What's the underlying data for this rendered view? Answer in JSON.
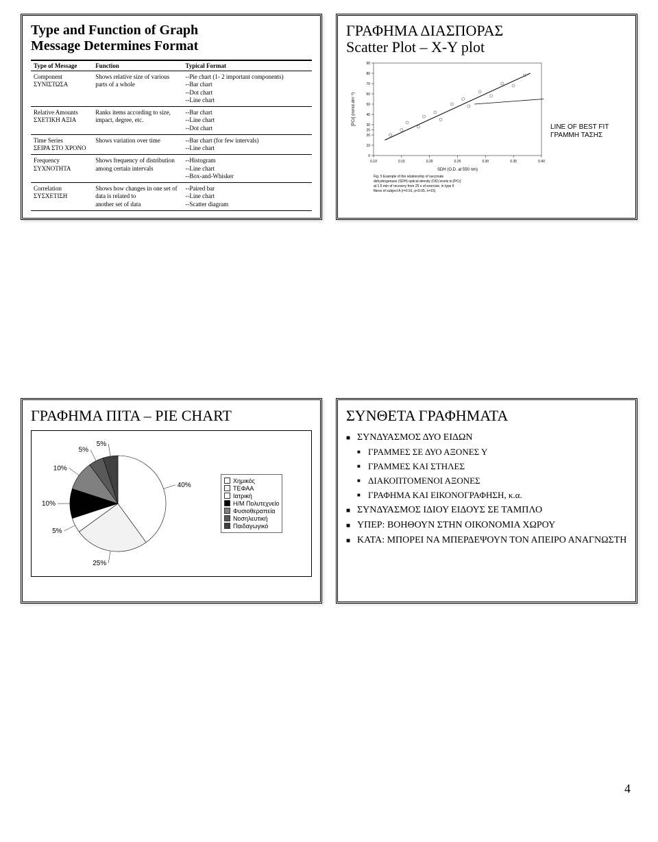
{
  "page_number": "4",
  "slide1": {
    "title_line1": "Type and Function of Graph",
    "title_line2": "Message Determines Format",
    "headers": [
      "Type of Message",
      "Function",
      "Typical Format"
    ],
    "rows": [
      {
        "type": "Component\nΣΥΝΙΣΤΩΣΑ",
        "func": "Shows relative size of various parts of a whole",
        "fmt": "--Pie chart (1- 2 important components)\n--Bar chart\n--Dot chart\n--Line chart"
      },
      {
        "type": "Relative Amounts\nΣΧΕΤΙΚΗ ΑΞΙΑ",
        "func": "Ranks items according to size, impact, degree, etc.",
        "fmt": "--Bar chart\n--Line chart\n--Dot chart"
      },
      {
        "type": "Time Series\nΣΕΙΡΑ ΣΤΟ ΧΡΟΝΟ",
        "func": "Shows variation over time",
        "fmt": "--Bar chart (for few intervals)\n--Line chart"
      },
      {
        "type": "Frequency\nΣΥΧΝΟΤΗΤΑ",
        "func": "Shows frequency of distribution among certain intervals",
        "fmt": "--Histogram\n--Line chart\n--Box-and-Whisker"
      },
      {
        "type": "Correlation\nΣΥΣΧΕΤΙΣΗ",
        "func": "Shows how changes in one set of data is related to\nanother set of data",
        "fmt": "--Paired bar\n--Line chart\n--Scatter diagram"
      }
    ]
  },
  "slide2": {
    "title_gr": "ΓΡΑΦΗΜΑ ΔΙΑΣΠΟΡΑΣ",
    "title_en": "Scatter Plot – X-Y plot",
    "label_line1": "LINE OF BEST FIT",
    "label_line2": "ΓΡΑΜΜΗ ΤΑΣΗΣ",
    "scatter": {
      "type": "scatter",
      "xlim": [
        0.1,
        0.4
      ],
      "ylim": [
        0,
        90
      ],
      "xticks": [
        0.1,
        0.15,
        0.2,
        0.25,
        0.3,
        0.35,
        0.4
      ],
      "yticks": [
        0,
        10,
        20,
        25,
        30,
        40,
        50,
        60,
        70,
        80,
        90
      ],
      "xlabel": "SDH (O.D. at 550 nm)",
      "ylabel": "[PCr] (mmol·dm⁻³)",
      "caption": "Fig. 5 Example of the relationship of succinate dehydrogenase (SDH) optical density (OD) levels to [PCr] at 1.5 min of recovery from 25 s of exercise, in type II fibres of subject A (r=0.91, p<0.05, n=15)",
      "label_fontsize": 6,
      "tick_fontsize": 5,
      "marker_style": "circle-open",
      "marker_size": 4,
      "marker_color": "#888888",
      "line_color": "#000000",
      "line_width": 1,
      "background_color": "#ffffff",
      "fit_line": {
        "x1": 0.12,
        "y1": 15,
        "x2": 0.38,
        "y2": 80
      },
      "points": [
        {
          "x": 0.13,
          "y": 20
        },
        {
          "x": 0.15,
          "y": 25
        },
        {
          "x": 0.16,
          "y": 32
        },
        {
          "x": 0.18,
          "y": 28
        },
        {
          "x": 0.19,
          "y": 38
        },
        {
          "x": 0.21,
          "y": 42
        },
        {
          "x": 0.22,
          "y": 35
        },
        {
          "x": 0.24,
          "y": 50
        },
        {
          "x": 0.26,
          "y": 55
        },
        {
          "x": 0.27,
          "y": 48
        },
        {
          "x": 0.29,
          "y": 62
        },
        {
          "x": 0.31,
          "y": 58
        },
        {
          "x": 0.33,
          "y": 70
        },
        {
          "x": 0.35,
          "y": 68
        },
        {
          "x": 0.37,
          "y": 78
        }
      ]
    }
  },
  "slide3": {
    "title": "ΓΡΑΦΗΜΑ ΠΙΤΑ – PIE CHART",
    "pie": {
      "type": "pie",
      "background_color": "#ffffff",
      "border_color": "#000000",
      "label_fontsize": 10,
      "slices": [
        {
          "label": "Χημικός",
          "pct": 40,
          "color": "#ffffff",
          "text_label": "40%"
        },
        {
          "label": "ΤΕΦΑΑ",
          "pct": 25,
          "color": "#f2f2f2",
          "text_label": "25%"
        },
        {
          "label": "Ιατρική",
          "pct": 5,
          "color": "#ffffff",
          "text_label": "5%"
        },
        {
          "label": "Η/Μ Πολυτεχνείο",
          "pct": 10,
          "color": "#000000",
          "text_label": "10%"
        },
        {
          "label": "Φυσιοθεραπεία",
          "pct": 10,
          "color": "#808080",
          "text_label": "10%"
        },
        {
          "label": "Νοσηλευτική",
          "pct": 5,
          "color": "#595959",
          "text_label": "5%"
        },
        {
          "label": "Παιδαγωγικό",
          "pct": 5,
          "color": "#404040",
          "text_label": "5%"
        }
      ]
    }
  },
  "slide4": {
    "title": "ΣΥΝΘΕΤΑ ΓΡΑΦΗΜΑΤΑ",
    "items": [
      {
        "text": "ΣΥΝΔΥΑΣΜΟΣ ΔΥΟ ΕΙΔΩΝ",
        "level": 0
      },
      {
        "text": "ΓΡΑΜΜΕΣ ΣΕ ΔΥΟ ΑΞΟΝΕΣ Υ",
        "level": 1
      },
      {
        "text": "ΓΡΑΜΜΕΣ ΚΑΙ ΣΤΗΛΕΣ",
        "level": 1
      },
      {
        "text": "ΔΙΑΚΟΠΤΟΜΕΝΟΙ ΑΞΟΝΕΣ",
        "level": 1
      },
      {
        "text": "ΓΡΑΦΗΜΑ ΚΑΙ ΕΙΚΟΝΟΓΡΑΦΗΣΗ, κ.α.",
        "level": 1
      },
      {
        "text": "ΣΥΝΔΥΑΣΜΟΣ ΙΔΙΟΥ ΕΙΔΟΥΣ ΣΕ ΤΑΜΠΛΟ",
        "level": 0
      },
      {
        "text": "ΥΠΕΡ: ΒΟΗΘΟΥΝ ΣΤΗΝ ΟΙΚΟΝΟΜΙΑ ΧΩΡΟΥ",
        "level": 0
      },
      {
        "text": "ΚΑΤΑ: ΜΠΟΡΕΙ ΝΑ ΜΠΕΡΔΕΨΟΥΝ ΤΟΝ ΑΠΕΙΡΟ ΑΝΑΓΝΩΣΤΗ",
        "level": 0
      }
    ]
  }
}
